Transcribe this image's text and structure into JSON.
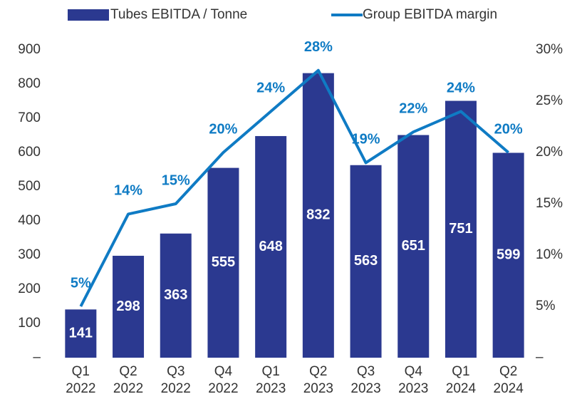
{
  "chart_data": {
    "type": "bar-line",
    "categories": [
      "Q1 2022",
      "Q2 2022",
      "Q3 2022",
      "Q4 2022",
      "Q1 2023",
      "Q2 2023",
      "Q3 2023",
      "Q4 2023",
      "Q1 2024",
      "Q2 2024"
    ],
    "series": [
      {
        "name": "Tubes EBITDA / Tonne",
        "color": "#2b3990",
        "type": "bar",
        "values": [
          141,
          298,
          363,
          555,
          648,
          832,
          563,
          651,
          751,
          599
        ]
      },
      {
        "name": "Group EBITDA margin",
        "color": "#0f7bc4",
        "type": "line",
        "axis": "y2",
        "values": [
          5,
          14,
          15,
          20,
          24,
          28,
          19,
          22,
          24,
          20
        ],
        "value_labels": [
          "5%",
          "14%",
          "15%",
          "20%",
          "24%",
          "28%",
          "19%",
          "22%",
          "24%",
          "20%"
        ]
      }
    ],
    "ylim": [
      0,
      900
    ],
    "yticks": [
      {
        "value": 0,
        "label": "–"
      },
      100,
      200,
      300,
      400,
      500,
      600,
      700,
      800,
      900
    ],
    "y2lim": [
      0,
      30
    ],
    "y2ticks": [
      {
        "value": 0,
        "label": "–"
      },
      {
        "value": 5,
        "label": "5%"
      },
      {
        "value": 10,
        "label": "10%"
      },
      {
        "value": 15,
        "label": "15%"
      },
      {
        "value": 20,
        "label": "20%"
      },
      {
        "value": 25,
        "label": "25%"
      },
      {
        "value": 30,
        "label": "30%"
      }
    ],
    "legend": "top"
  }
}
